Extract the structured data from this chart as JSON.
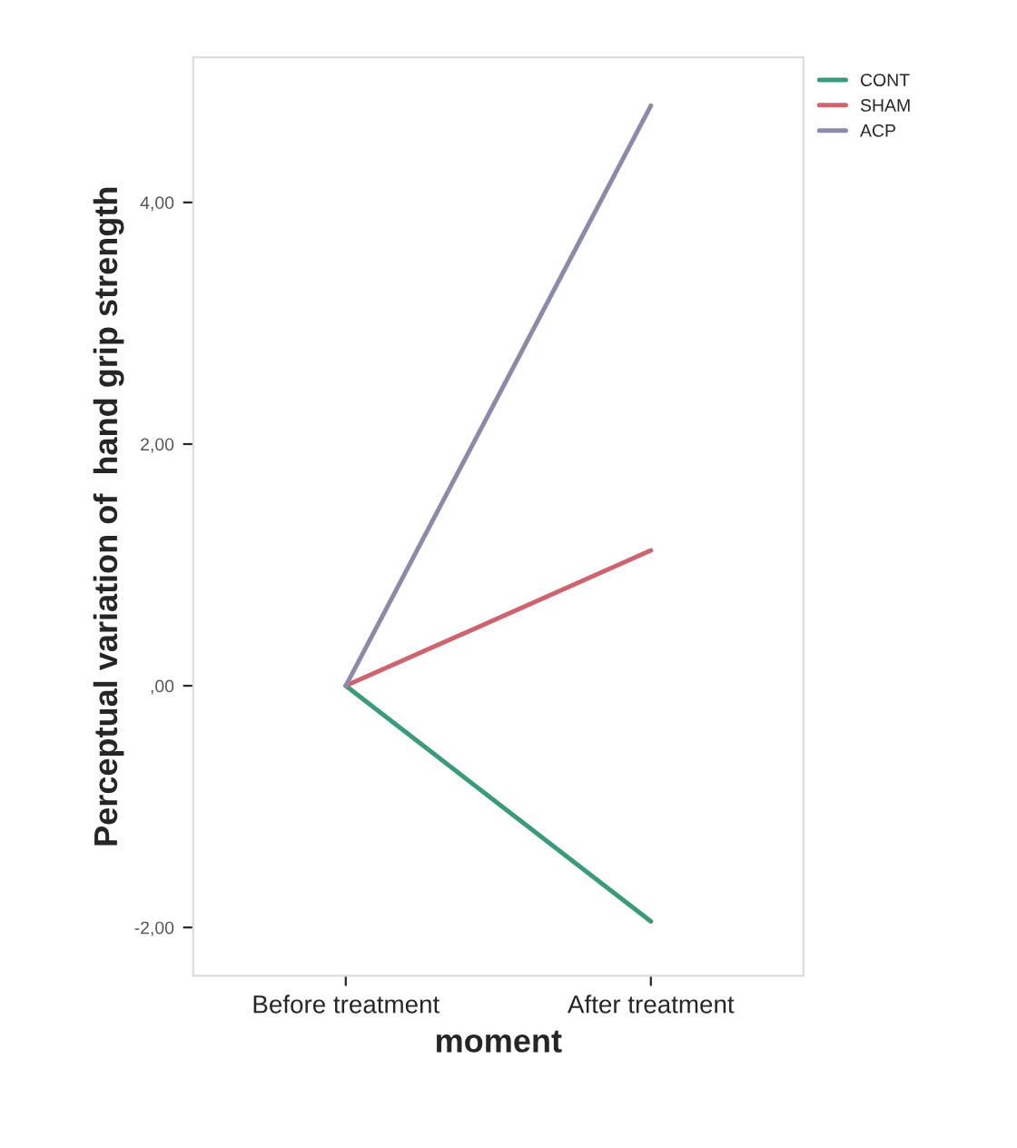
{
  "chart_data": {
    "type": "line",
    "xlabel": "moment",
    "ylabel": "Perceptual variation of  hand grip strength",
    "categories": [
      "Before treatment",
      "After treatment"
    ],
    "series": [
      {
        "name": "CONT",
        "color": "#3a9b78",
        "values": [
          0,
          -1.95
        ]
      },
      {
        "name": "SHAM",
        "color": "#d0646e",
        "values": [
          0,
          1.12
        ]
      },
      {
        "name": "ACP",
        "color": "#8a8aaa",
        "values": [
          0,
          4.8
        ]
      }
    ],
    "ylim": [
      -2.4,
      5.2
    ],
    "yticks": [
      {
        "value": -2,
        "label": "-2,00"
      },
      {
        "value": 0,
        "label": ",00"
      },
      {
        "value": 2,
        "label": "2,00"
      },
      {
        "value": 4,
        "label": "4,00"
      }
    ],
    "grid": false,
    "legend": "top right",
    "marker": "none",
    "line_style": "solid"
  }
}
